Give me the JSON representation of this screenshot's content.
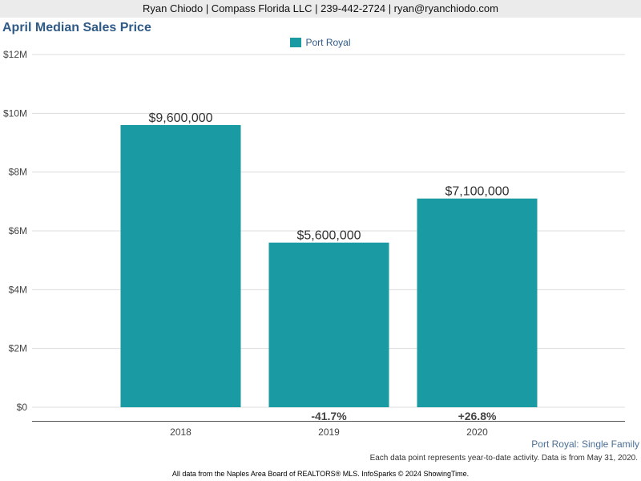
{
  "header": {
    "contact": "Ryan Chiodo | Compass Florida LLC | 239-442-2724 | ryan@ryanchiodo.com"
  },
  "chart_data": {
    "type": "bar",
    "title": "April Median Sales Price",
    "categories": [
      "2018",
      "2019",
      "2020"
    ],
    "series": [
      {
        "name": "Port Royal",
        "values": [
          9600000,
          5600000,
          7100000
        ],
        "value_labels": [
          "$9,600,000",
          "$5,600,000",
          "$7,100,000"
        ],
        "color": "#1a9aa2"
      }
    ],
    "change_labels": [
      "",
      "-41.7%",
      "+26.8%"
    ],
    "ylim": [
      0,
      12000000
    ],
    "yticks": [
      0,
      2000000,
      4000000,
      6000000,
      8000000,
      10000000,
      12000000
    ],
    "ytick_labels": [
      "$0",
      "$2M",
      "$4M",
      "$6M",
      "$8M",
      "$10M",
      "$12M"
    ],
    "xlabel": "",
    "ylabel": "",
    "grid": true,
    "legend_position": "top-center"
  },
  "footer": {
    "subtitle": "Port Royal: Single Family",
    "note": "Each data point represents year-to-date activity. Data is from May 31, 2020.",
    "source": "All data from the Naples Area Board of REALTORS® MLS. InfoSparks © 2024 ShowingTime."
  }
}
